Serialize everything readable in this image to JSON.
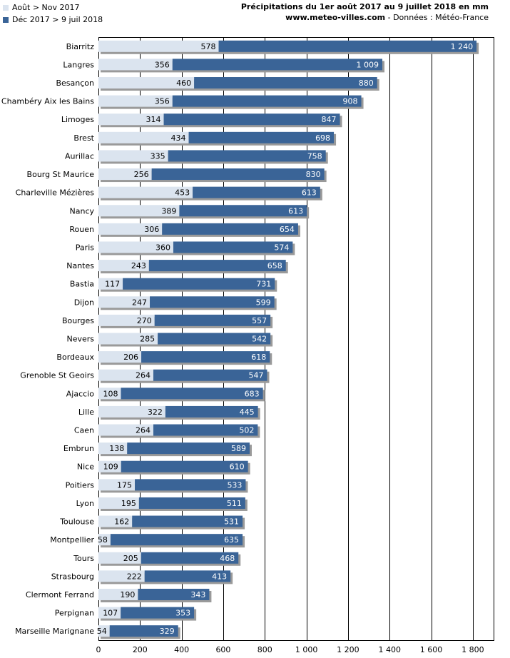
{
  "legend": {
    "series1_label": "Août > Nov 2017",
    "series2_label": "Déc 2017 > 9 juil 2018"
  },
  "header": {
    "title": "Précipitations du 1er août 2017 au 9 juillet 2018 en mm",
    "site": "www.meteo-villes.com",
    "source": " - Données : Météo-France"
  },
  "colors": {
    "series1": "#dbe4ef",
    "series2": "#3a6497",
    "grid": "#000000",
    "shadow": "#9a9a9a"
  },
  "chart_data": {
    "type": "bar",
    "orientation": "horizontal",
    "stacked": true,
    "categories": [
      "Biarritz",
      "Langres",
      "Besançon",
      "Chambéry Aix les Bains",
      "Limoges",
      "Brest",
      "Aurillac",
      "Bourg St Maurice",
      "Charleville Mézières",
      "Nancy",
      "Rouen",
      "Paris",
      "Nantes",
      "Bastia",
      "Dijon",
      "Bourges",
      "Nevers",
      "Bordeaux",
      "Grenoble St Geoirs",
      "Ajaccio",
      "Lille",
      "Caen",
      "Embrun",
      "Nice",
      "Poitiers",
      "Lyon",
      "Toulouse",
      "Montpellier",
      "Tours",
      "Strasbourg",
      "Clermont Ferrand",
      "Perpignan",
      "Marseille Marignane"
    ],
    "series": [
      {
        "name": "Août > Nov 2017",
        "values": [
          578,
          356,
          460,
          356,
          314,
          434,
          335,
          256,
          453,
          389,
          306,
          360,
          243,
          117,
          247,
          270,
          285,
          206,
          264,
          108,
          322,
          264,
          138,
          109,
          175,
          195,
          162,
          58,
          205,
          222,
          190,
          107,
          54
        ]
      },
      {
        "name": "Déc 2017 > 9 juil 2018",
        "values": [
          1240,
          1009,
          880,
          908,
          847,
          698,
          758,
          830,
          613,
          613,
          654,
          574,
          658,
          731,
          599,
          557,
          542,
          618,
          547,
          683,
          445,
          502,
          589,
          610,
          533,
          511,
          531,
          635,
          468,
          413,
          343,
          353,
          329
        ]
      }
    ],
    "series1_labels": [
      "578",
      "356",
      "460",
      "356",
      "314",
      "434",
      "335",
      "256",
      "453",
      "389",
      "306",
      "360",
      "243",
      "117",
      "247",
      "270",
      "285",
      "206",
      "264",
      "108",
      "322",
      "264",
      "138",
      "109",
      "175",
      "195",
      "162",
      "58",
      "205",
      "222",
      "190",
      "107",
      "54"
    ],
    "series2_labels": [
      "1 240",
      "1 009",
      "880",
      "908",
      "847",
      "698",
      "758",
      "830",
      "613",
      "613",
      "654",
      "574",
      "658",
      "731",
      "599",
      "557",
      "542",
      "618",
      "547",
      "683",
      "445",
      "502",
      "589",
      "610",
      "533",
      "511",
      "531",
      "635",
      "468",
      "413",
      "343",
      "353",
      "329"
    ],
    "xlim": [
      0,
      1900
    ],
    "x_ticks": [
      0,
      200,
      400,
      600,
      800,
      1000,
      1200,
      1400,
      1600,
      1800
    ],
    "x_tick_labels": [
      "0",
      "200",
      "400",
      "600",
      "800",
      "1 000",
      "1 200",
      "1 400",
      "1 600",
      "1 800"
    ],
    "grid": true,
    "legend_position": "top-left"
  }
}
